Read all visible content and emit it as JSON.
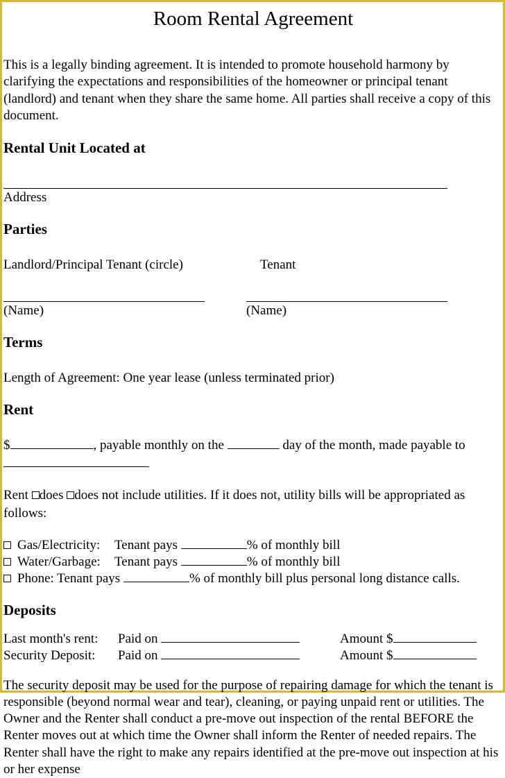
{
  "colors": {
    "border": "#d4b838",
    "background": "#ffffff",
    "text": "#000000",
    "line": "#000000"
  },
  "typography": {
    "family": "Times New Roman",
    "title_fontsize": 29,
    "body_fontsize": 19,
    "heading_fontsize": 21
  },
  "title": "Room Rental Agreement",
  "intro": "This is a legally binding agreement. It is intended to promote household harmony by clarifying the expectations and responsibilities of the homeowner or principal tenant (landlord) and tenant when they share the same home. All parties shall receive a copy of this document.",
  "sections": {
    "rental_unit": {
      "heading": "Rental Unit Located at",
      "address_caption": "Address"
    },
    "parties": {
      "heading": "Parties",
      "landlord_label": "Landlord/Principal Tenant (circle)",
      "tenant_label": "Tenant",
      "name_caption": "(Name)"
    },
    "terms": {
      "heading": "Terms",
      "length_label": "Length of Agreement: ",
      "length_value": "One year lease (unless terminated prior)"
    },
    "rent": {
      "heading": "Rent",
      "dollar": "$",
      "payable_text": ", payable monthly on the ",
      "day_text": " day of the month, made payable to",
      "utilities_prefix": "Rent ",
      "does": "does ",
      "does_not": "does not include utilities. If it does not, utility bills will be appropriated as follows:",
      "items": [
        {
          "label": "Gas/Electricity:",
          "text_prefix": "Tenant pays ",
          "text_suffix": "% of monthly bill"
        },
        {
          "label": "Water/Garbage:",
          "text_prefix": "Tenant pays ",
          "text_suffix": "% of monthly bill"
        },
        {
          "label": "Phone: Tenant pays ",
          "text_suffix": "% of monthly bill plus personal long distance calls."
        }
      ]
    },
    "deposits": {
      "heading": "Deposits",
      "rows": [
        {
          "label": "Last month's rent:",
          "paid_on": "Paid on ",
          "amount": "Amount $"
        },
        {
          "label": "Security Deposit:",
          "paid_on": "Paid on ",
          "amount": "Amount $"
        }
      ],
      "closing": "The security deposit may be used for the purpose of repairing damage for which the tenant is responsible (beyond normal wear and tear), cleaning, or paying unpaid rent or utilities. The Owner and the Renter shall conduct a pre-move out inspection of the rental BEFORE the Renter moves out at which time the Owner shall inform the Renter of needed repairs. The Renter shall have the right to make any repairs identified at the pre-move out inspection at his or her expense"
    }
  }
}
